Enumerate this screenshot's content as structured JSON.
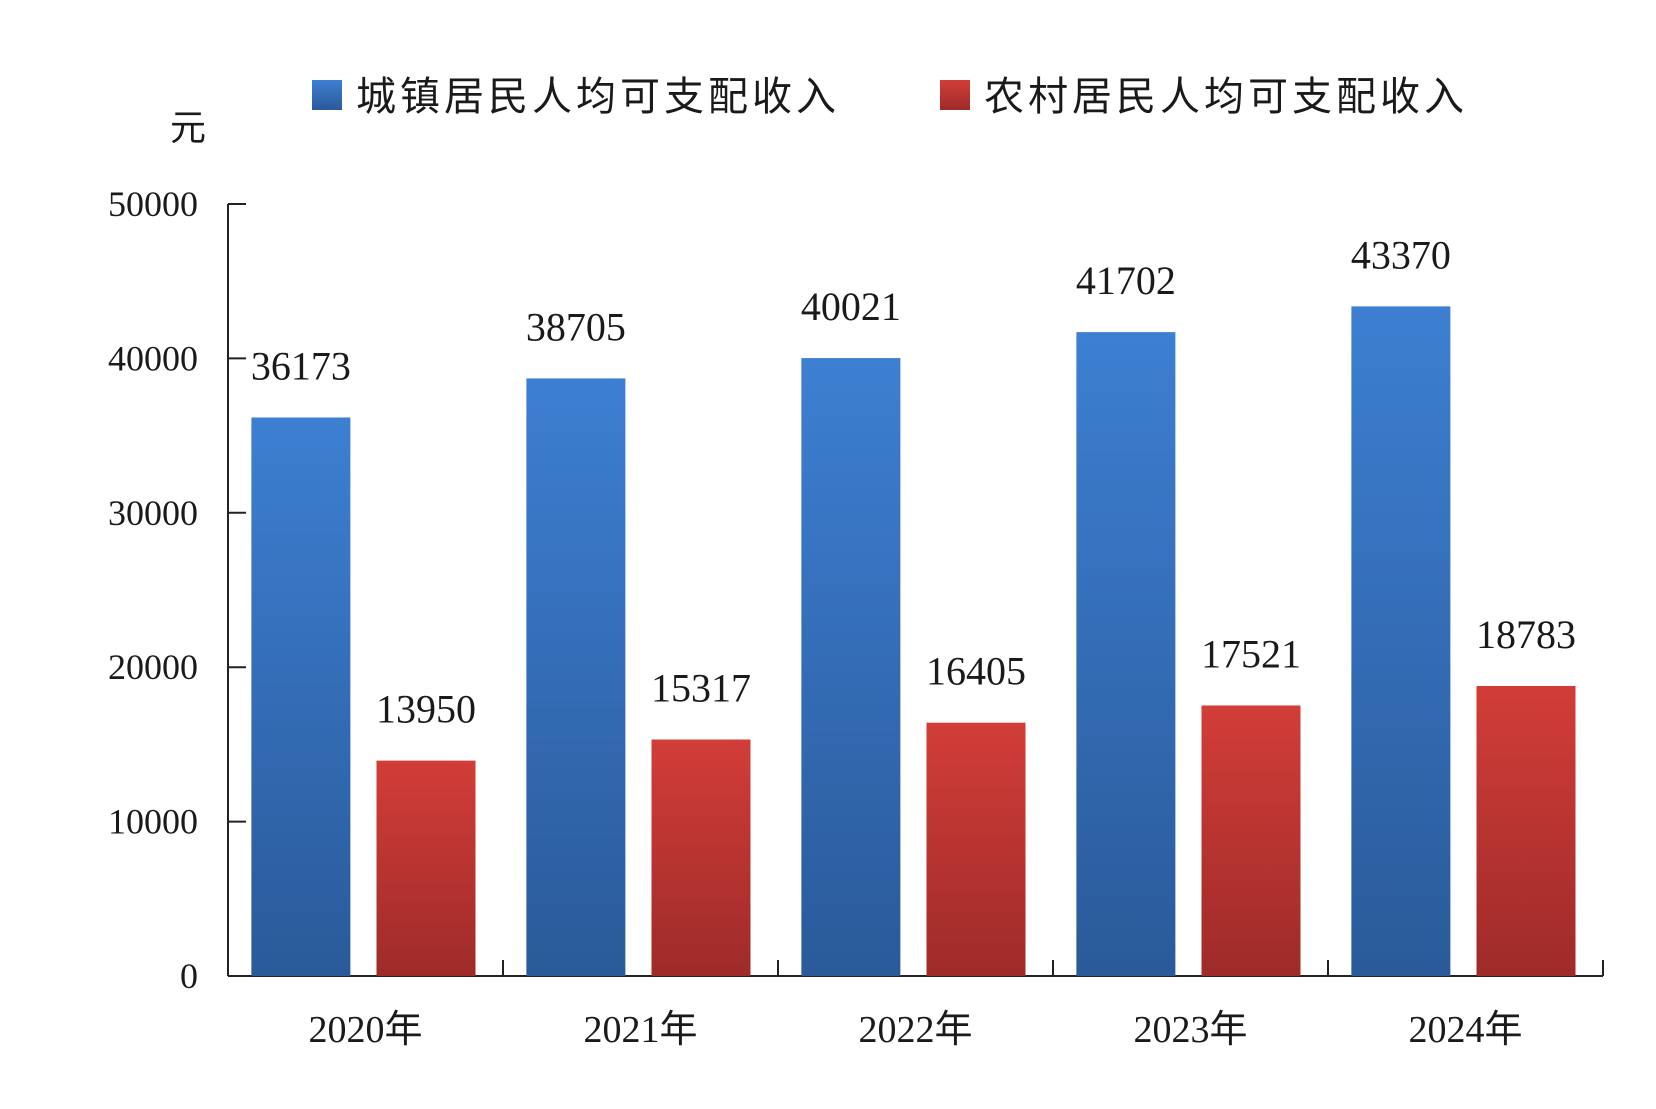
{
  "chart_data": {
    "type": "bar",
    "unit": "元",
    "categories": [
      "2020年",
      "2021年",
      "2022年",
      "2023年",
      "2024年"
    ],
    "series": [
      {
        "name": "城镇居民人均可支配收入",
        "values": [
          36173,
          38705,
          40021,
          41702,
          43370
        ],
        "color": "#3a74c4"
      },
      {
        "name": "农村居民人均可支配收入",
        "values": [
          13950,
          15317,
          16405,
          17521,
          18783
        ],
        "color": "#c83a36"
      }
    ],
    "ylim": [
      0,
      50000
    ],
    "yticks": [
      "0",
      "10000",
      "20000",
      "30000",
      "40000",
      "50000"
    ],
    "legend_position": "top",
    "grid": false
  }
}
